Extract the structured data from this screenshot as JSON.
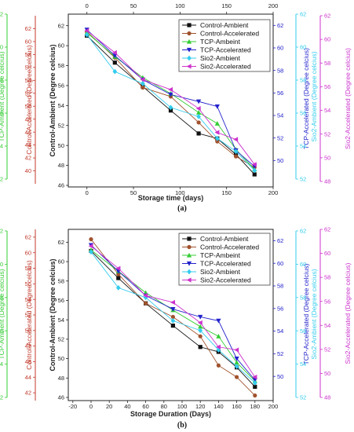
{
  "figure": {
    "panel_labels": [
      "(a)",
      "(b)"
    ]
  },
  "chart_data": [
    {
      "type": "line",
      "panel": "(a)",
      "xlabel": "Storage time (days)",
      "xlim": [
        -20,
        200
      ],
      "x_ticks_bottom": [
        0,
        50,
        100,
        150,
        200
      ],
      "x_ticks_top": [
        0,
        50,
        100,
        150,
        200
      ],
      "x": [
        0,
        30,
        60,
        90,
        120,
        140,
        160,
        180
      ],
      "axes": [
        {
          "key": "tcp_amb",
          "label": "TCP-Ambient (Degree celcius)",
          "color": "#33cc33",
          "ylim": [
            52,
            62
          ],
          "ticks": [
            52,
            54,
            56,
            58,
            60,
            62
          ]
        },
        {
          "key": "ctrl_acc",
          "label": "Control-Accelerated (Degree celcius)",
          "color": "#c0392b",
          "ylim": [
            38,
            64
          ],
          "ticks": [
            40,
            42,
            44,
            46,
            48,
            50,
            52,
            54,
            56,
            58,
            60,
            62
          ]
        },
        {
          "key": "ctrl_amb",
          "label": "Control-Ambient (Degree celcius)",
          "color": "#222222",
          "ylim": [
            46,
            63
          ],
          "ticks": [
            46,
            48,
            50,
            52,
            54,
            56,
            58,
            60,
            62
          ]
        },
        {
          "key": "tcp_acc",
          "label": "TCP-Accelerated (Degree celcius)",
          "color": "#2222cc",
          "ylim": [
            48,
            63
          ],
          "ticks": [
            50,
            52,
            54,
            56,
            58,
            60,
            62
          ]
        },
        {
          "key": "sio2_amb",
          "label": "Sio2-Ambient (Degree celcius)",
          "color": "#33ccee",
          "ylim": [
            52,
            62
          ],
          "ticks": [
            52,
            54,
            56,
            58,
            60,
            62
          ]
        },
        {
          "key": "sio2_acc",
          "label": "Sio2-Accelerated (Degree celcius)",
          "color": "#cc33cc",
          "ylim": [
            48,
            62
          ],
          "ticks": [
            48,
            50,
            52,
            54,
            56,
            58,
            60,
            62
          ]
        }
      ],
      "series": [
        {
          "name": "Control-Ambient",
          "marker": "square",
          "color": "#111111",
          "values": [
            61.0,
            58.3,
            55.9,
            53.5,
            51.2,
            50.7,
            49.1,
            47.1
          ]
        },
        {
          "name": "Control-Accelerated",
          "marker": "circle",
          "color": "#a0522d",
          "values": [
            61.4,
            58.8,
            55.8,
            54.9,
            52.3,
            50.4,
            48.9,
            47.8
          ]
        },
        {
          "name": "TCP-Ambeint",
          "marker": "triangle-up",
          "color": "#33cc33",
          "values": [
            61.3,
            58.9,
            56.8,
            55.2,
            53.3,
            52.2,
            49.6,
            47.6
          ]
        },
        {
          "name": "TCP-Accelerated",
          "marker": "triangle-down",
          "color": "#2222cc",
          "values": [
            61.6,
            59.0,
            56.6,
            55.1,
            54.4,
            53.9,
            49.5,
            47.9
          ]
        },
        {
          "name": "Sio2-Ambient",
          "marker": "diamond",
          "color": "#33ccee",
          "values": [
            61.1,
            57.4,
            56.2,
            53.8,
            52.9,
            50.7,
            49.4,
            47.5
          ]
        },
        {
          "name": "Sio2-Accelerated",
          "marker": "triangle-left",
          "color": "#cc33cc",
          "values": [
            61.5,
            59.3,
            56.6,
            55.6,
            53.7,
            51.3,
            50.6,
            48.1
          ]
        }
      ],
      "series_axis": [
        "ctrl_amb",
        "ctrl_amb",
        "ctrl_amb",
        "ctrl_amb",
        "ctrl_amb",
        "ctrl_amb"
      ],
      "legend": "top-right",
      "grid": false
    },
    {
      "type": "line",
      "panel": "(b)",
      "xlabel": "Storage Duration (Days)",
      "xlim": [
        -25,
        200
      ],
      "x_ticks_bottom": [
        -20,
        0,
        20,
        40,
        60,
        80,
        100,
        120,
        140,
        160,
        180,
        200
      ],
      "x": [
        0,
        30,
        60,
        90,
        120,
        140,
        160,
        180
      ],
      "axes": [
        {
          "key": "tcp_amb",
          "label": "TCP-Ambient (Degree celcius)",
          "color": "#33cc33",
          "ylim": [
            52,
            62
          ],
          "ticks": [
            52,
            54,
            56,
            58,
            60,
            62
          ]
        },
        {
          "key": "ctrl_acc",
          "label": "Control-Accelerated (Degree celcius)",
          "color": "#c0392b",
          "ylim": [
            41,
            63
          ],
          "ticks": [
            42,
            44,
            46,
            48,
            50,
            52,
            54,
            56,
            58,
            60,
            62
          ]
        },
        {
          "key": "ctrl_amb",
          "label": "Control-Ambient (Degree celcius)",
          "color": "#222222",
          "ylim": [
            46,
            63
          ],
          "ticks": [
            46,
            48,
            50,
            52,
            54,
            56,
            58,
            60,
            62
          ]
        },
        {
          "key": "tcp_acc",
          "label": "TCP-Accelerated (Degree celcius)",
          "color": "#2222cc",
          "ylim": [
            48,
            63
          ],
          "ticks": [
            50,
            52,
            54,
            56,
            58,
            60,
            62
          ]
        },
        {
          "key": "sio2_amb",
          "label": "Sio2-Ambient (Degree celcius)",
          "color": "#33ccee",
          "ylim": [
            52,
            62
          ],
          "ticks": [
            52,
            54,
            56,
            58,
            60,
            62
          ]
        },
        {
          "key": "sio2_acc",
          "label": "Sio2-Accelerated (Degree celcius)",
          "color": "#cc33cc",
          "ylim": [
            48,
            62
          ],
          "ticks": [
            48,
            50,
            52,
            54,
            56,
            58,
            60,
            62
          ]
        }
      ],
      "series": [
        {
          "name": "Control-Ambient",
          "marker": "square",
          "color": "#111111",
          "values": [
            61.1,
            58.3,
            55.7,
            53.4,
            51.2,
            50.7,
            49.1,
            47.1
          ]
        },
        {
          "name": "Control-Accelerated",
          "marker": "circle",
          "color": "#a0522d",
          "values": [
            62.3,
            58.7,
            55.7,
            54.3,
            52.3,
            49.3,
            48.1,
            46.2
          ]
        },
        {
          "name": "TCP-Ambeint",
          "marker": "triangle-up",
          "color": "#33cc33",
          "values": [
            61.2,
            59.0,
            56.8,
            55.0,
            53.3,
            52.3,
            49.6,
            47.7
          ]
        },
        {
          "name": "TCP-Accelerated",
          "marker": "triangle-down",
          "color": "#2222cc",
          "values": [
            61.7,
            59.0,
            56.5,
            55.1,
            54.3,
            53.9,
            50.0,
            47.8
          ]
        },
        {
          "name": "Sio2-Ambient",
          "marker": "diamond",
          "color": "#33ccee",
          "values": [
            61.0,
            57.3,
            56.3,
            53.9,
            52.9,
            50.9,
            49.2,
            47.5
          ]
        },
        {
          "name": "Sio2-Accelerated",
          "marker": "triangle-left",
          "color": "#cc33cc",
          "values": [
            61.6,
            59.3,
            56.5,
            55.8,
            53.7,
            51.2,
            50.9,
            48.1
          ]
        }
      ],
      "series_axis": [
        "ctrl_amb",
        "ctrl_amb",
        "ctrl_amb",
        "ctrl_amb",
        "ctrl_amb",
        "ctrl_amb"
      ],
      "legend": "top-right",
      "grid": false
    }
  ]
}
